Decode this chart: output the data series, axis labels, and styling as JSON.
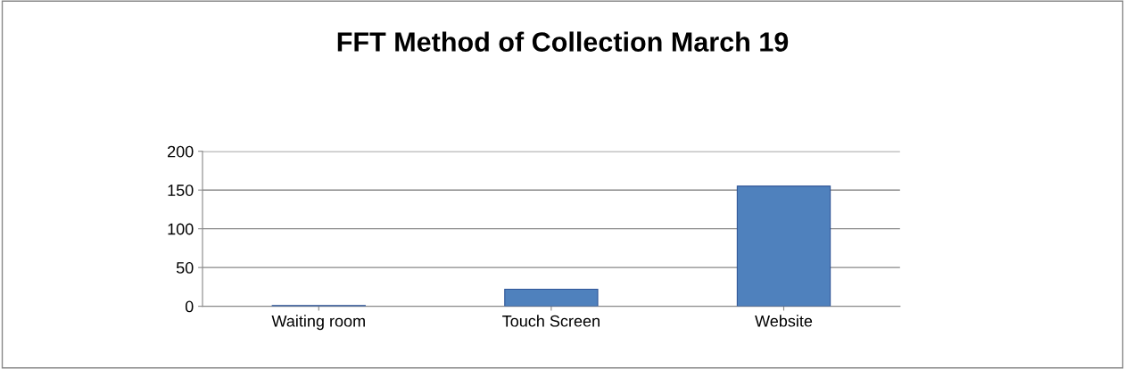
{
  "chart_data": {
    "type": "bar",
    "title": "FFT Method of Collection March 19",
    "categories": [
      "Waiting room",
      "Touch Screen",
      "Website"
    ],
    "values": [
      1,
      22,
      155
    ],
    "color": "#4f81bd",
    "ylim": [
      0,
      200
    ],
    "yticks": [
      0,
      50,
      100,
      150,
      200
    ],
    "grid": "y"
  }
}
